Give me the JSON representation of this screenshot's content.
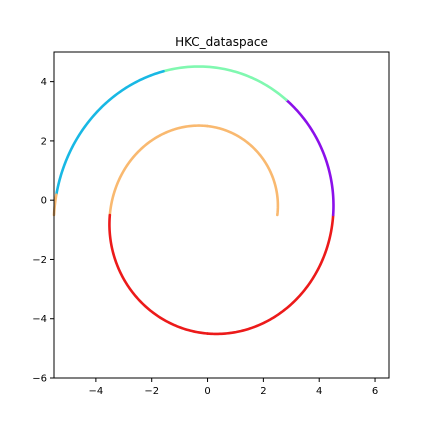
{
  "chart_data": {
    "type": "scatter",
    "title": "HKC_dataspace",
    "xlabel": "",
    "ylabel": "",
    "xlim": [
      -5.5,
      6.5
    ],
    "ylim": [
      -6,
      5
    ],
    "xticks": [
      -4,
      -2,
      0,
      2,
      4,
      6
    ],
    "yticks": [
      -6,
      -4,
      -2,
      0,
      2,
      4
    ],
    "xtick_labels": [
      "−4",
      "−2",
      "0",
      "2",
      "4",
      "6"
    ],
    "ytick_labels": [
      "−6",
      "−4",
      "−2",
      "0",
      "2",
      "4"
    ],
    "grid": false,
    "legend": "none",
    "curve": {
      "kind": "archimedean-spiral",
      "center": [
        0,
        -0.5
      ],
      "r_start": 2.5,
      "r_growth_per_turn": 2.0,
      "total_turns": 1.5,
      "point_count": 600
    },
    "segments": [
      {
        "turn_from": 0.0,
        "turn_to": 0.25,
        "color": "#f9b970"
      },
      {
        "turn_from": 0.25,
        "turn_to": 0.5,
        "color": "#f9b970"
      },
      {
        "turn_from": 0.5,
        "turn_to": 0.75,
        "color": "#ec1a1a"
      },
      {
        "turn_from": 0.75,
        "turn_to": 1.0,
        "color": "#ec1a1a"
      },
      {
        "turn_from": 1.0,
        "turn_to": 1.15,
        "color": "#8b10ea"
      },
      {
        "turn_from": 1.15,
        "turn_to": 1.3,
        "color": "#80f8b0"
      },
      {
        "turn_from": 1.3,
        "turn_to": 1.48,
        "color": "#18b8e4"
      },
      {
        "turn_from": 1.48,
        "turn_to": 1.5,
        "color": "#f9b970"
      }
    ]
  }
}
